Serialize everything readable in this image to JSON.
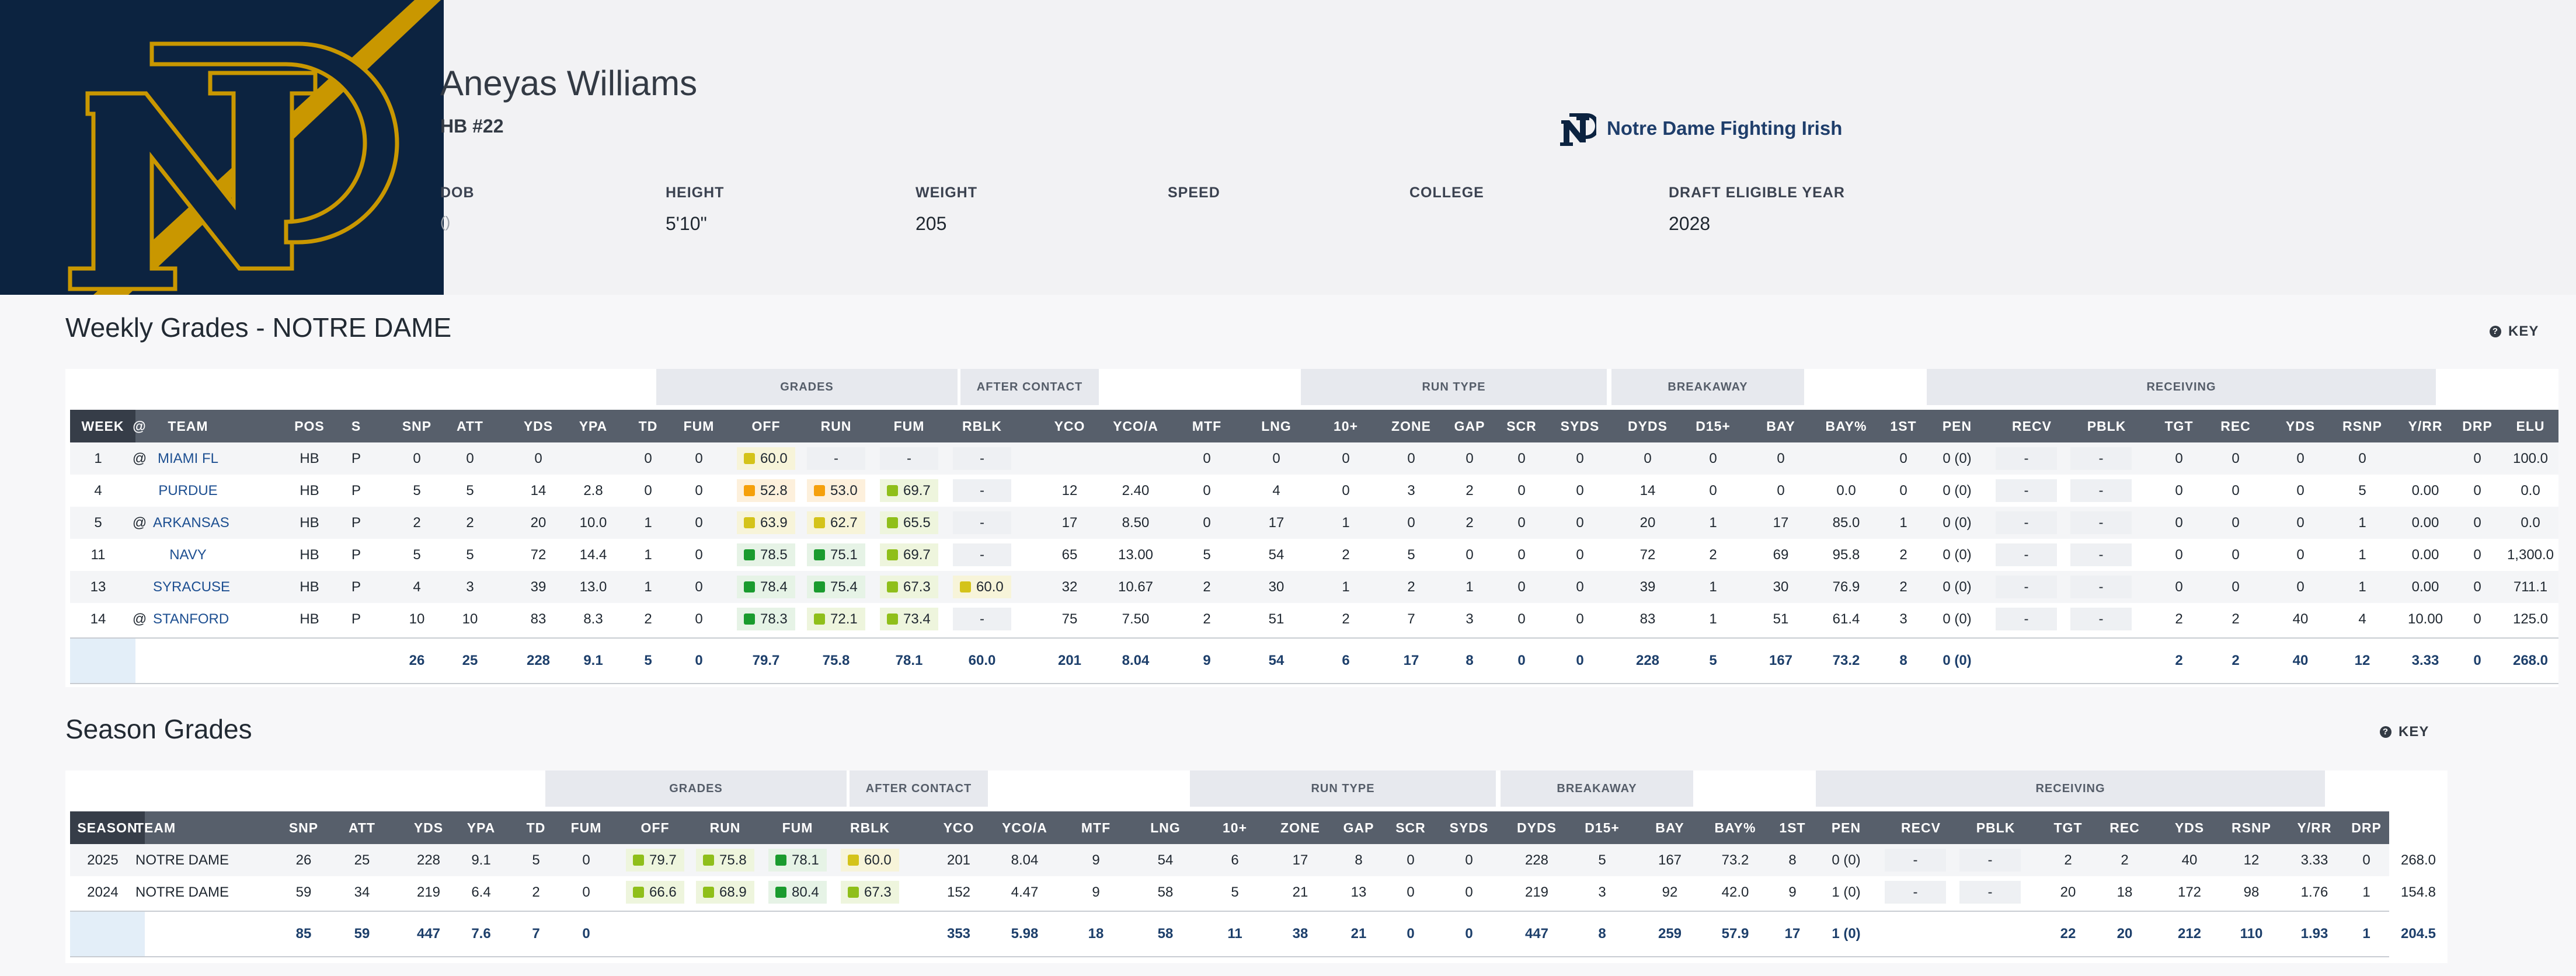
{
  "player": {
    "name": "Aneyas Williams",
    "position": "HB #22"
  },
  "team": {
    "name": "Notre Dame Fighting Irish",
    "logo_icon": "nd-monogram-icon"
  },
  "bio": [
    {
      "label": "DOB",
      "value": "()"
    },
    {
      "label": "HEIGHT",
      "value": "5'10\""
    },
    {
      "label": "WEIGHT",
      "value": "205"
    },
    {
      "label": "SPEED",
      "value": ""
    },
    {
      "label": "COLLEGE",
      "value": ""
    },
    {
      "label": "DRAFT ELIGIBLE YEAR",
      "value": "2028"
    }
  ],
  "colors": {
    "navy": "#0c2340",
    "gold": "#c99700",
    "elite": "#1a9b2e",
    "good": "#8fbf1a",
    "avg": "#d4c31a",
    "below": "#f5a00c"
  },
  "weekly": {
    "title": "Weekly Grades - NOTRE DAME",
    "key_label": "KEY",
    "groups": [
      "GRADES",
      "AFTER CONTACT",
      "RUN TYPE",
      "BREAKAWAY",
      "RECEIVING"
    ],
    "columns": [
      "WEEK",
      "@",
      "TEAM",
      "POS",
      "S",
      "SNP",
      "ATT",
      "YDS",
      "YPA",
      "TD",
      "FUM",
      "OFF",
      "RUN",
      "FUM",
      "RBLK",
      "YCO",
      "YCO/A",
      "MTF",
      "LNG",
      "10+",
      "ZONE",
      "GAP",
      "SCR",
      "SYDS",
      "DYDS",
      "D15+",
      "BAY",
      "BAY%",
      "1ST",
      "PEN",
      "RECV",
      "PBLK",
      "TGT",
      "REC",
      "YDS",
      "RSNP",
      "Y/RR",
      "DRP",
      "ELU"
    ],
    "rows": [
      [
        "1",
        "@",
        "MIAMI FL",
        "HB",
        "P",
        "0",
        "0",
        "0",
        "",
        "0",
        "0",
        "60.0",
        "-",
        "-",
        "-",
        "",
        "",
        "0",
        "0",
        "0",
        "0",
        "0",
        "0",
        "0",
        "0",
        "0",
        "0",
        "",
        "0",
        "0 (0)",
        "-",
        "-",
        "0",
        "0",
        "0",
        "0",
        "",
        "0",
        "100.0"
      ],
      [
        "4",
        "",
        "PURDUE",
        "HB",
        "P",
        "5",
        "5",
        "14",
        "2.8",
        "0",
        "0",
        "52.8",
        "53.0",
        "69.7",
        "-",
        "12",
        "2.40",
        "0",
        "4",
        "0",
        "3",
        "2",
        "0",
        "0",
        "14",
        "0",
        "0",
        "0.0",
        "0",
        "0 (0)",
        "-",
        "-",
        "0",
        "0",
        "0",
        "5",
        "0.00",
        "0",
        "0.0"
      ],
      [
        "5",
        "@",
        "ARKANSAS",
        "HB",
        "P",
        "2",
        "2",
        "20",
        "10.0",
        "1",
        "0",
        "63.9",
        "62.7",
        "65.5",
        "-",
        "17",
        "8.50",
        "0",
        "17",
        "1",
        "0",
        "2",
        "0",
        "0",
        "20",
        "1",
        "17",
        "85.0",
        "1",
        "0 (0)",
        "-",
        "-",
        "0",
        "0",
        "0",
        "1",
        "0.00",
        "0",
        "0.0"
      ],
      [
        "11",
        "",
        "NAVY",
        "HB",
        "P",
        "5",
        "5",
        "72",
        "14.4",
        "1",
        "0",
        "78.5",
        "75.1",
        "69.7",
        "-",
        "65",
        "13.00",
        "5",
        "54",
        "2",
        "5",
        "0",
        "0",
        "0",
        "72",
        "2",
        "69",
        "95.8",
        "2",
        "0 (0)",
        "-",
        "-",
        "0",
        "0",
        "0",
        "1",
        "0.00",
        "0",
        "1,300.0"
      ],
      [
        "13",
        "",
        "SYRACUSE",
        "HB",
        "P",
        "4",
        "3",
        "39",
        "13.0",
        "1",
        "0",
        "78.4",
        "75.4",
        "67.3",
        "60.0",
        "32",
        "10.67",
        "2",
        "30",
        "1",
        "2",
        "1",
        "0",
        "0",
        "39",
        "1",
        "30",
        "76.9",
        "2",
        "0 (0)",
        "-",
        "-",
        "0",
        "0",
        "0",
        "1",
        "0.00",
        "0",
        "711.1"
      ],
      [
        "14",
        "@",
        "STANFORD",
        "HB",
        "P",
        "10",
        "10",
        "83",
        "8.3",
        "2",
        "0",
        "78.3",
        "72.1",
        "73.4",
        "-",
        "75",
        "7.50",
        "2",
        "51",
        "2",
        "7",
        "3",
        "0",
        "0",
        "83",
        "1",
        "51",
        "61.4",
        "3",
        "0 (0)",
        "-",
        "-",
        "2",
        "2",
        "40",
        "4",
        "10.00",
        "0",
        "125.0"
      ]
    ],
    "grade_colors": [
      [
        "avg",
        "",
        "",
        ""
      ],
      [
        "below",
        "below",
        "good",
        ""
      ],
      [
        "avg",
        "avg",
        "good",
        ""
      ],
      [
        "elite",
        "elite",
        "good",
        ""
      ],
      [
        "elite",
        "elite",
        "good",
        "avg"
      ],
      [
        "elite",
        "good",
        "good",
        ""
      ]
    ],
    "totals": [
      "",
      "",
      "",
      "",
      "",
      "26",
      "25",
      "228",
      "9.1",
      "5",
      "0",
      "79.7",
      "75.8",
      "78.1",
      "60.0",
      "201",
      "8.04",
      "9",
      "54",
      "6",
      "17",
      "8",
      "0",
      "0",
      "228",
      "5",
      "167",
      "73.2",
      "8",
      "0 (0)",
      "",
      "",
      "2",
      "2",
      "40",
      "12",
      "3.33",
      "0",
      "268.0"
    ]
  },
  "season": {
    "title": "Season Grades",
    "key_label": "KEY",
    "groups": [
      "GRADES",
      "AFTER CONTACT",
      "RUN TYPE",
      "BREAKAWAY",
      "RECEIVING"
    ],
    "columns": [
      "SEASON",
      "TEAM",
      "SNP",
      "ATT",
      "YDS",
      "YPA",
      "TD",
      "FUM",
      "OFF",
      "RUN",
      "FUM",
      "RBLK",
      "YCO",
      "YCO/A",
      "MTF",
      "LNG",
      "10+",
      "ZONE",
      "GAP",
      "SCR",
      "SYDS",
      "DYDS",
      "D15+",
      "BAY",
      "BAY%",
      "1ST",
      "PEN",
      "RECV",
      "PBLK",
      "TGT",
      "REC",
      "YDS",
      "RSNP",
      "Y/RR",
      "DRP",
      "ELU"
    ],
    "rows": [
      [
        "2025",
        "NOTRE DAME",
        "26",
        "25",
        "228",
        "9.1",
        "5",
        "0",
        "79.7",
        "75.8",
        "78.1",
        "60.0",
        "201",
        "8.04",
        "9",
        "54",
        "6",
        "17",
        "8",
        "0",
        "0",
        "228",
        "5",
        "167",
        "73.2",
        "8",
        "0 (0)",
        "-",
        "-",
        "2",
        "2",
        "40",
        "12",
        "3.33",
        "0",
        "268.0"
      ],
      [
        "2024",
        "NOTRE DAME",
        "59",
        "34",
        "219",
        "6.4",
        "2",
        "0",
        "66.6",
        "68.9",
        "80.4",
        "67.3",
        "152",
        "4.47",
        "9",
        "58",
        "5",
        "21",
        "13",
        "0",
        "0",
        "219",
        "3",
        "92",
        "42.0",
        "9",
        "1 (0)",
        "-",
        "-",
        "20",
        "18",
        "172",
        "98",
        "1.76",
        "1",
        "154.8"
      ]
    ],
    "grade_colors": [
      [
        "good",
        "good",
        "elite",
        "avg"
      ],
      [
        "good",
        "good",
        "elite",
        "good"
      ]
    ],
    "totals": [
      "",
      "",
      "85",
      "59",
      "447",
      "7.6",
      "7",
      "0",
      "",
      "",
      "",
      "",
      "353",
      "5.98",
      "18",
      "58",
      "11",
      "38",
      "21",
      "0",
      "0",
      "447",
      "8",
      "259",
      "57.9",
      "17",
      "1 (0)",
      "",
      "",
      "22",
      "20",
      "212",
      "110",
      "1.93",
      "1",
      "204.5"
    ]
  }
}
